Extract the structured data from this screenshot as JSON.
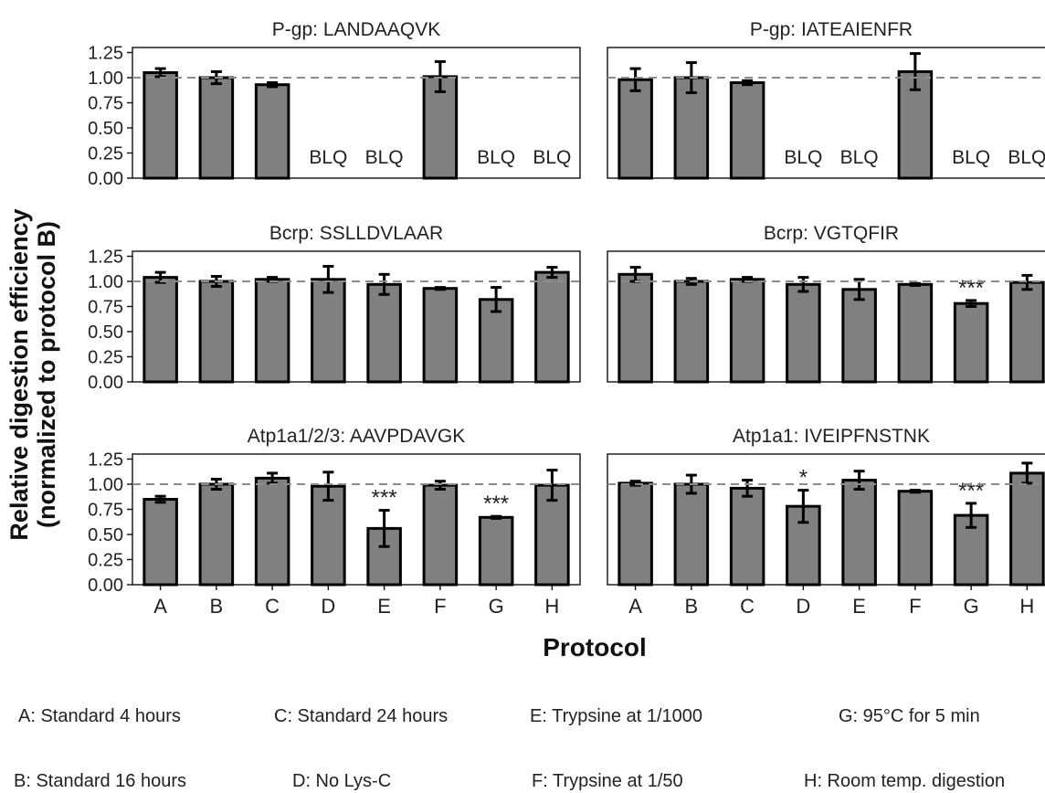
{
  "figure": {
    "ylabel_line1": "Relative digestion efficiency",
    "ylabel_line2": "(normalized to protocol B)",
    "xlabel": "Protocol",
    "bar_color": "#808080",
    "ref_line_color": "#8c8c8c"
  },
  "legend": {
    "A": "A: Standard 4 hours",
    "B": "B: Standard 16 hours",
    "C": "C: Standard 24 hours",
    "D": "D: No Lys-C",
    "E": "E: Trypsine at 1/1000",
    "F": "F: Trypsine at 1/50",
    "G": "G: 95°C for 5 min",
    "H": "H: Room temp. digestion"
  },
  "chart_data": [
    {
      "type": "bar",
      "title": "P-gp: LANDAAQVK",
      "categories": [
        "A",
        "B",
        "C",
        "D",
        "E",
        "F",
        "G",
        "H"
      ],
      "values": [
        1.05,
        1.0,
        0.93,
        null,
        null,
        1.01,
        null,
        null
      ],
      "errors": [
        0.04,
        0.06,
        0.02,
        null,
        null,
        0.15,
        null,
        null
      ],
      "annotations": [
        "",
        "",
        "",
        "BLQ",
        "BLQ",
        "",
        "BLQ",
        "BLQ"
      ],
      "yticks": [
        "0.00",
        "0.25",
        "0.50",
        "0.75",
        "1.00",
        "1.25"
      ],
      "ylim": [
        0,
        1.3
      ],
      "reference_line": 1.0
    },
    {
      "type": "bar",
      "title": "P-gp: IATEAIENFR",
      "categories": [
        "A",
        "B",
        "C",
        "D",
        "E",
        "F",
        "G",
        "H"
      ],
      "values": [
        0.98,
        1.0,
        0.95,
        null,
        null,
        1.06,
        null,
        null
      ],
      "errors": [
        0.11,
        0.15,
        0.02,
        null,
        null,
        0.18,
        null,
        null
      ],
      "annotations": [
        "",
        "",
        "",
        "BLQ",
        "BLQ",
        "",
        "BLQ",
        "BLQ"
      ],
      "ylim": [
        0,
        1.3
      ],
      "reference_line": 1.0
    },
    {
      "type": "bar",
      "title": "Bcrp: SSLLDVLAAR",
      "categories": [
        "A",
        "B",
        "C",
        "D",
        "E",
        "F",
        "G",
        "H"
      ],
      "values": [
        1.04,
        1.0,
        1.02,
        1.02,
        0.97,
        0.93,
        0.82,
        1.09
      ],
      "errors": [
        0.05,
        0.05,
        0.02,
        0.13,
        0.1,
        0.01,
        0.12,
        0.05
      ],
      "annotations": [
        "",
        "",
        "",
        "",
        "",
        "",
        "",
        ""
      ],
      "yticks": [
        "0.00",
        "0.25",
        "0.50",
        "0.75",
        "1.00",
        "1.25"
      ],
      "ylim": [
        0,
        1.3
      ],
      "reference_line": 1.0
    },
    {
      "type": "bar",
      "title": "Bcrp: VGTQFIR",
      "categories": [
        "A",
        "B",
        "C",
        "D",
        "E",
        "F",
        "G",
        "H"
      ],
      "values": [
        1.07,
        1.0,
        1.02,
        0.97,
        0.92,
        0.97,
        0.78,
        0.99
      ],
      "errors": [
        0.07,
        0.03,
        0.02,
        0.07,
        0.1,
        0.01,
        0.03,
        0.07
      ],
      "annotations": [
        "",
        "",
        "",
        "",
        "",
        "",
        "***",
        ""
      ],
      "ylim": [
        0,
        1.3
      ],
      "reference_line": 1.0
    },
    {
      "type": "bar",
      "title": "Atp1a1/2/3: AAVPDAVGK",
      "categories": [
        "A",
        "B",
        "C",
        "D",
        "E",
        "F",
        "G",
        "H"
      ],
      "values": [
        0.85,
        1.0,
        1.06,
        0.98,
        0.56,
        0.99,
        0.67,
        0.99
      ],
      "errors": [
        0.03,
        0.05,
        0.05,
        0.14,
        0.18,
        0.04,
        0.01,
        0.15
      ],
      "annotations": [
        "",
        "",
        "",
        "",
        "***",
        "",
        "***",
        ""
      ],
      "yticks": [
        "0.00",
        "0.25",
        "0.50",
        "0.75",
        "1.00",
        "1.25"
      ],
      "ylim": [
        0,
        1.3
      ],
      "reference_line": 1.0,
      "show_xticks": true
    },
    {
      "type": "bar",
      "title": "Atp1a1: IVEIPFNSTNK",
      "categories": [
        "A",
        "B",
        "C",
        "D",
        "E",
        "F",
        "G",
        "H"
      ],
      "values": [
        1.01,
        1.0,
        0.96,
        0.78,
        1.04,
        0.93,
        0.69,
        1.11
      ],
      "errors": [
        0.02,
        0.09,
        0.08,
        0.16,
        0.09,
        0.01,
        0.12,
        0.1
      ],
      "annotations": [
        "",
        "",
        "",
        "*",
        "",
        "",
        "***",
        ""
      ],
      "ylim": [
        0,
        1.3
      ],
      "reference_line": 1.0,
      "show_xticks": true
    }
  ]
}
